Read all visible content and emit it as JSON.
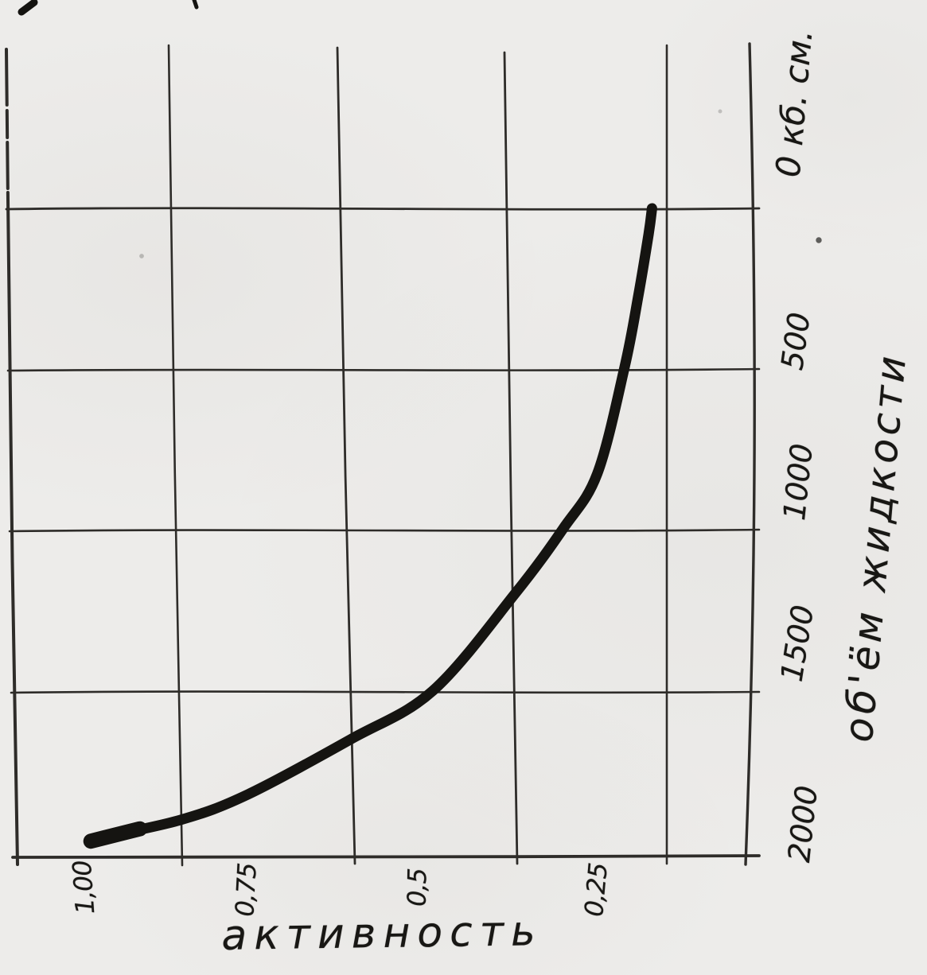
{
  "figure": {
    "activity_axis_title": "активность",
    "volume_axis_title": "об'ём жидкости",
    "activity_ticks": {
      "t100": "1,00",
      "t075": "0,75",
      "t050": "0,5",
      "t025": "0,25"
    },
    "volume_ticks": {
      "v0": "0 кб. см.",
      "v500": "500",
      "v1000": "1000",
      "v1500": "1500",
      "v2000": "2000"
    },
    "ink_color": "#1a1916",
    "paper_color": "#edecea"
  },
  "chart_data": {
    "type": "line",
    "title": "",
    "ylabel": "активность",
    "xlabel": "об'ём жидкости (кб. см.)",
    "orientation_note": "scan is rotated 90°: activity axis runs along the bottom edge of the page (1,00 … 0,25 left to right), volume axis runs along the right edge (0 кб. см. at top, 2000 at bottom); curve is hand-drawn in ink",
    "grid": true,
    "legend_position": "none",
    "xlim": [
      2000,
      0
    ],
    "ylim": [
      0,
      1.0
    ],
    "x_tick_values": [
      2000,
      1500,
      1000,
      500,
      0
    ],
    "y_tick_values": [
      1.0,
      0.75,
      0.5,
      0.25
    ],
    "series": [
      {
        "name": "активность vs об'ём жидкости",
        "x": [
          1950,
          1890,
          1810,
          1640,
          1490,
          1190,
          990,
          820,
          490,
          270,
          80,
          0
        ],
        "y": [
          0.98,
          0.85,
          0.75,
          0.6,
          0.48,
          0.36,
          0.29,
          0.24,
          0.2,
          0.18,
          0.165,
          0.16
        ]
      }
    ]
  }
}
